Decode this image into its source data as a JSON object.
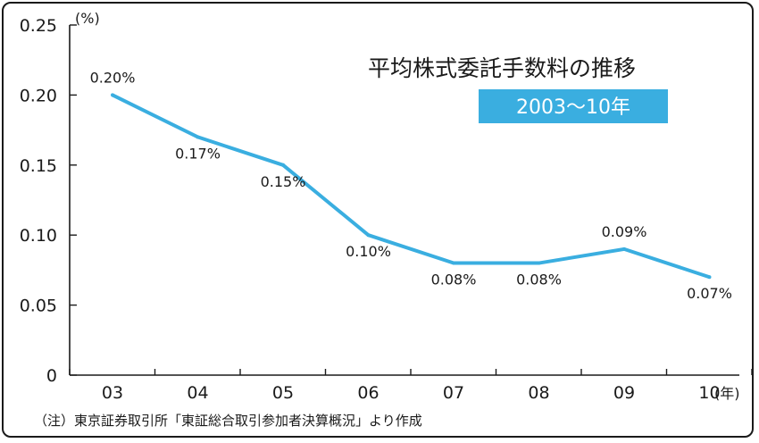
{
  "chart_data": {
    "type": "line",
    "title": "平均株式委託手数料の推移",
    "subtitle": "2003～10年",
    "y_unit": "(%)",
    "x_unit": "(年)",
    "categories": [
      "03",
      "04",
      "05",
      "06",
      "07",
      "08",
      "09",
      "10"
    ],
    "series": [
      {
        "values": [
          0.2,
          0.17,
          0.15,
          0.1,
          0.08,
          0.08,
          0.09,
          0.07
        ],
        "labels": [
          "0.20%",
          "0.17%",
          "0.15%",
          "0.10%",
          "0.08%",
          "0.08%",
          "0.09%",
          "0.07%"
        ],
        "color": "#3aaee0"
      }
    ],
    "y_ticks": [
      "0",
      "0.05",
      "0.10",
      "0.15",
      "0.20",
      "0.25"
    ],
    "y_tick_values": [
      0,
      0.05,
      0.1,
      0.15,
      0.2,
      0.25
    ],
    "ylim": [
      0,
      0.25
    ],
    "grid": false,
    "source_note": "（注）東京証券取引所「東証総合取引参加者決算概況」より作成",
    "colors": {
      "line": "#3aaee0",
      "subtitle_box": "#3aaee0",
      "axis": "#1a1a1a"
    }
  }
}
